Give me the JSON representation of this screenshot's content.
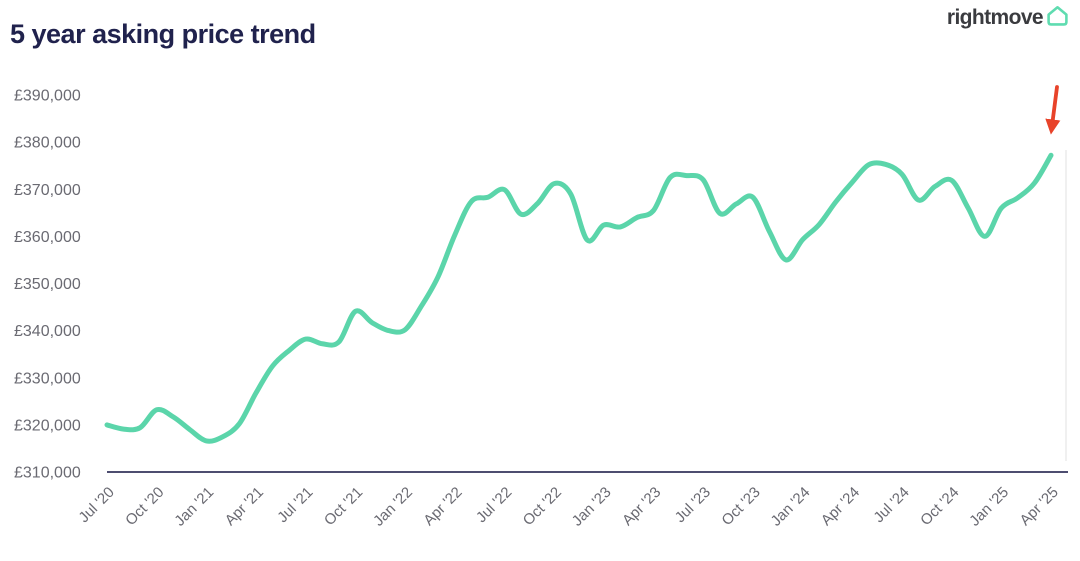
{
  "header": {
    "title": "5 year asking price trend",
    "logo_text": "rightmove",
    "logo_icon": "house-outline-icon"
  },
  "chart_data": {
    "type": "line",
    "title": "5 year asking price trend",
    "xlabel": "",
    "ylabel": "",
    "grid": "off",
    "legend": "none",
    "ylim": [
      310000,
      390000
    ],
    "y_tick_labels": [
      "£390,000",
      "£380,000",
      "£370,000",
      "£360,000",
      "£350,000",
      "£340,000",
      "£330,000",
      "£320,000",
      "£310,000"
    ],
    "y_tick_values": [
      390000,
      380000,
      370000,
      360000,
      350000,
      340000,
      330000,
      320000,
      310000
    ],
    "x_tick_labels": [
      "Jul '20",
      "Oct '20",
      "Jan '21",
      "Apr '21",
      "Jul '21",
      "Oct '21",
      "Jan '22",
      "Apr '22",
      "Jul '22",
      "Oct '22",
      "Jan '23",
      "Apr '23",
      "Jul '23",
      "Oct '23",
      "Jan '24",
      "Apr '24",
      "Jul '24",
      "Oct '24",
      "Jan '25",
      "Apr '25"
    ],
    "x_months": [
      "Jul '20",
      "Aug '20",
      "Sep '20",
      "Oct '20",
      "Nov '20",
      "Dec '20",
      "Jan '21",
      "Feb '21",
      "Mar '21",
      "Apr '21",
      "May '21",
      "Jun '21",
      "Jul '21",
      "Aug '21",
      "Sep '21",
      "Oct '21",
      "Nov '21",
      "Dec '21",
      "Jan '22",
      "Feb '22",
      "Mar '22",
      "Apr '22",
      "May '22",
      "Jun '22",
      "Jul '22",
      "Aug '22",
      "Sep '22",
      "Oct '22",
      "Nov '22",
      "Dec '22",
      "Jan '23",
      "Feb '23",
      "Mar '23",
      "Apr '23",
      "May '23",
      "Jun '23",
      "Jul '23",
      "Aug '23",
      "Sep '23",
      "Oct '23",
      "Nov '23",
      "Dec '23",
      "Jan '24",
      "Feb '24",
      "Mar '24",
      "Apr '24",
      "May '24",
      "Jun '24",
      "Jul '24",
      "Aug '24",
      "Sep '24",
      "Oct '24",
      "Nov '24",
      "Dec '24",
      "Jan '25",
      "Feb '25",
      "Mar '25",
      "Apr '25"
    ],
    "values": [
      320000,
      319100,
      319400,
      323200,
      321700,
      319000,
      316600,
      317500,
      320300,
      326800,
      332500,
      335800,
      338200,
      337200,
      337600,
      344100,
      341700,
      340000,
      340200,
      345300,
      351500,
      360300,
      367400,
      368300,
      369900,
      364700,
      367000,
      371200,
      369000,
      359200,
      362400,
      362000,
      364000,
      365500,
      372500,
      372900,
      372000,
      364900,
      366900,
      368300,
      361000,
      355000,
      359300,
      362500,
      367300,
      371500,
      375200,
      375300,
      373200,
      367700,
      370600,
      371900,
      366000,
      360000,
      366000,
      368200,
      371300,
      377200
    ],
    "annotation": {
      "type": "arrow-down",
      "points_at": "Apr '25",
      "points_at_value": 377200
    },
    "colors": {
      "line": "#5bd5aa",
      "axis": "#4d4d70",
      "tick_text": "#6a6a72",
      "title": "#20224d",
      "logo_text": "#3a3b3f",
      "logo_icon": "#5fdcb0",
      "arrow": "#e8432a",
      "right_border": "#ececec"
    }
  }
}
